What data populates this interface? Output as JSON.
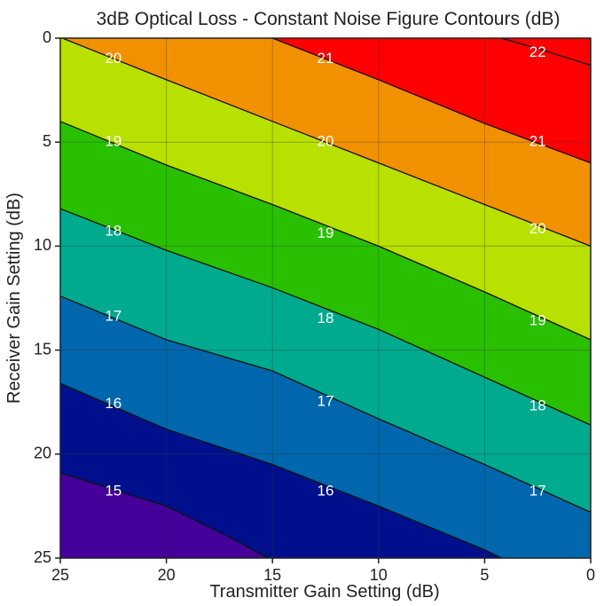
{
  "chart_data": {
    "type": "contour",
    "title": "3dB Optical Loss - Constant Noise Figure Contours (dB)",
    "xlabel": "Transmitter Gain Setting (dB)",
    "ylabel": "Receiver Gain Setting (dB)",
    "x_axis": {
      "range": [
        25,
        0
      ],
      "reversed": true,
      "ticks": [
        25,
        20,
        15,
        10,
        5,
        0
      ]
    },
    "y_axis": {
      "range": [
        0,
        25
      ],
      "inverted": true,
      "ticks": [
        0,
        5,
        10,
        15,
        20,
        25
      ]
    },
    "grid": true,
    "unit": "dB",
    "levels": [
      {
        "value": 22,
        "label": "22",
        "color": "#ff0000"
      },
      {
        "value": 21,
        "label": "21",
        "color": "#f29100"
      },
      {
        "value": 20,
        "label": "20",
        "color": "#b8e000"
      },
      {
        "value": 19,
        "label": "19",
        "color": "#28c000"
      },
      {
        "value": 18,
        "label": "18",
        "color": "#00aa8f"
      },
      {
        "value": 17,
        "label": "17",
        "color": "#0066ad"
      },
      {
        "value": 16,
        "label": "16",
        "color": "#00108c"
      },
      {
        "value": 15,
        "label": "15",
        "color": "#440099"
      }
    ],
    "contour_lines": [
      {
        "value": 22,
        "points": [
          [
            4.2,
            0
          ],
          [
            2.5,
            0.5
          ],
          [
            0,
            1.3
          ]
        ]
      },
      {
        "value": 21,
        "points": [
          [
            15,
            0
          ],
          [
            10,
            2.0
          ],
          [
            5,
            4.1
          ],
          [
            0,
            6.0
          ]
        ]
      },
      {
        "value": 20,
        "points": [
          [
            24.9,
            0
          ],
          [
            20,
            2.0
          ],
          [
            15,
            4.0
          ],
          [
            10,
            6.0
          ],
          [
            5,
            8.0
          ],
          [
            0,
            10.0
          ]
        ]
      },
      {
        "value": 19,
        "points": [
          [
            25,
            4.0
          ],
          [
            20,
            6.1
          ],
          [
            15,
            8.0
          ],
          [
            10,
            10.0
          ],
          [
            5,
            12.2
          ],
          [
            0,
            14.5
          ]
        ]
      },
      {
        "value": 18,
        "points": [
          [
            25,
            8.2
          ],
          [
            20,
            10.2
          ],
          [
            15,
            12.0
          ],
          [
            10,
            14.0
          ],
          [
            5,
            16.3
          ],
          [
            0,
            18.6
          ]
        ]
      },
      {
        "value": 17,
        "points": [
          [
            25,
            12.4
          ],
          [
            20,
            14.5
          ],
          [
            15,
            16.0
          ],
          [
            10,
            18.3
          ],
          [
            5,
            20.5
          ],
          [
            0,
            22.8
          ]
        ]
      },
      {
        "value": 16,
        "points": [
          [
            25,
            16.6
          ],
          [
            20,
            18.8
          ],
          [
            15,
            20.5
          ],
          [
            10,
            22.5
          ],
          [
            5,
            24.6
          ],
          [
            4.2,
            25
          ]
        ]
      },
      {
        "value": 15,
        "points": [
          [
            25,
            20.9
          ],
          [
            20,
            22.5
          ],
          [
            17,
            24.0
          ],
          [
            15.2,
            25
          ]
        ]
      }
    ],
    "labels": [
      {
        "text": "22",
        "x": 2.5,
        "y": 0.7
      },
      {
        "text": "21",
        "x": 12.5,
        "y": 1.0
      },
      {
        "text": "20",
        "x": 22.5,
        "y": 1.0
      },
      {
        "text": "21",
        "x": 2.5,
        "y": 5.0
      },
      {
        "text": "20",
        "x": 12.5,
        "y": 5.0
      },
      {
        "text": "19",
        "x": 22.5,
        "y": 5.0
      },
      {
        "text": "20",
        "x": 2.5,
        "y": 9.2
      },
      {
        "text": "19",
        "x": 12.5,
        "y": 9.4
      },
      {
        "text": "18",
        "x": 22.5,
        "y": 9.3
      },
      {
        "text": "19",
        "x": 2.5,
        "y": 13.6
      },
      {
        "text": "18",
        "x": 12.5,
        "y": 13.5
      },
      {
        "text": "17",
        "x": 22.5,
        "y": 13.4
      },
      {
        "text": "18",
        "x": 2.5,
        "y": 17.7
      },
      {
        "text": "17",
        "x": 12.5,
        "y": 17.5
      },
      {
        "text": "16",
        "x": 22.5,
        "y": 17.6
      },
      {
        "text": "17",
        "x": 2.5,
        "y": 21.8
      },
      {
        "text": "16",
        "x": 12.5,
        "y": 21.8
      },
      {
        "text": "15",
        "x": 22.5,
        "y": 21.8
      }
    ]
  }
}
